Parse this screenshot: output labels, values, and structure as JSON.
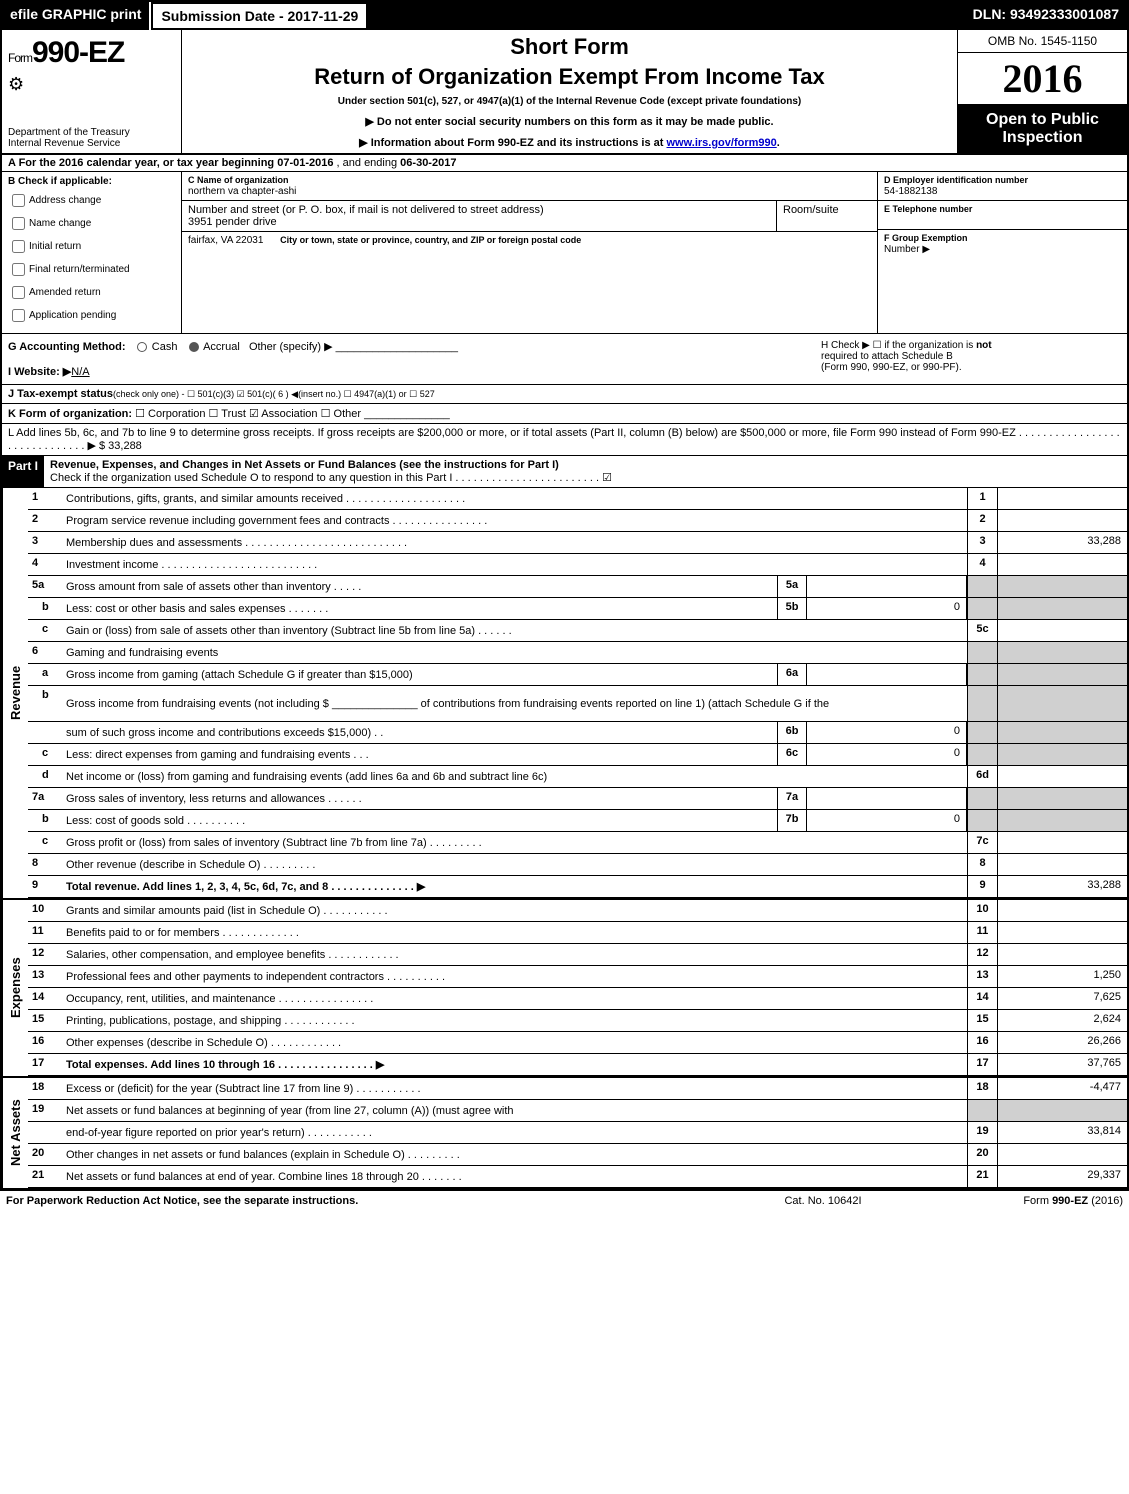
{
  "topbar": {
    "efile": "efile GRAPHIC print",
    "submission": "Submission Date - 2017-11-29",
    "dln": "DLN: 93492333001087"
  },
  "header": {
    "form_prefix": "Form",
    "form_no": "990-EZ",
    "dept1": "Department of the Treasury",
    "dept2": "Internal Revenue Service",
    "shortform": "Short Form",
    "title2": "Return of Organization Exempt From Income Tax",
    "subtitle": "Under section 501(c), 527, or 4947(a)(1) of the Internal Revenue Code (except private foundations)",
    "arrow1": "▶ Do not enter social security numbers on this form as it may be made public.",
    "arrow2_pre": "▶ Information about Form 990-EZ and its instructions is at ",
    "arrow2_link": "www.irs.gov/form990",
    "arrow2_post": ".",
    "omb": "OMB No. 1545-1150",
    "year": "2016",
    "open1": "Open to Public",
    "open2": "Inspection"
  },
  "row_a": {
    "label": "A  For the 2016 calendar year, or tax year beginning ",
    "begin": "07-01-2016",
    "mid": " , and ending ",
    "end": "06-30-2017"
  },
  "col_b": {
    "head": "B  Check if applicable:",
    "items": [
      "Address change",
      "Name change",
      "Initial return",
      "Final return/terminated",
      "Amended return",
      "Application pending"
    ]
  },
  "col_c": {
    "c_label": "C Name of organization",
    "c_value": "northern va chapter-ashi",
    "street_label": "Number and street (or P. O. box, if mail is not delivered to street address)",
    "street_value": "3951 pender drive",
    "room_label": "Room/suite",
    "city_label": "City or town, state or province, country, and ZIP or foreign postal code",
    "city_value": "fairfax, VA  22031"
  },
  "col_d": {
    "d_label": "D Employer identification number",
    "d_value": "54-1882138",
    "e_label": "E Telephone number",
    "e_value": "",
    "f_label": "F Group Exemption",
    "f_label2": "Number   ▶"
  },
  "row_g": {
    "g_label": "G Accounting Method:",
    "g_opts": [
      "Cash",
      "Accrual",
      "Other (specify) ▶"
    ],
    "h_text1": "H   Check ▶  ☐  if the organization is ",
    "h_bold": "not",
    "h_text2": " required to attach Schedule B",
    "h_text3": "(Form 990, 990-EZ, or 990-PF)."
  },
  "row_i": {
    "label": "I Website: ▶",
    "value": "N/A"
  },
  "row_j": {
    "label": "J Tax-exempt status",
    "rest": "(check only one) -  ☐ 501(c)(3)  ☑ 501(c)( 6 ) ◀(insert no.)  ☐ 4947(a)(1) or  ☐ 527"
  },
  "row_k": {
    "label": "K Form of organization:",
    "rest": "  ☐ Corporation   ☐ Trust   ☑ Association   ☐ Other"
  },
  "row_l": {
    "text": "L Add lines 5b, 6c, and 7b to line 9 to determine gross receipts. If gross receipts are $200,000 or more, or if total assets (Part II, column (B) below) are $500,000 or more, file Form 990 instead of Form 990-EZ  .  .  .  .  .  .  .  .  .  .  .  .  .  .  .  .  .  .  .  .  .  .  .  .  .  .  .  .  .  .  ▶ ",
    "amount": "$ 33,288"
  },
  "part1": {
    "part": "Part I",
    "title": "Revenue, Expenses, and Changes in Net Assets or Fund Balances (see the instructions for Part I)",
    "check": "Check if the organization used Schedule O to respond to any question in this Part I .  .  .  .  .  .  .  .  .  .  .  .  .  .  .  .  .  .  .  .  .  .  .  .  ☑"
  },
  "sections": {
    "revenue": "Revenue",
    "expenses": "Expenses",
    "netassets": "Net Assets"
  },
  "lines": [
    {
      "n": "1",
      "d": "Contributions, gifts, grants, and similar amounts received .  .  .  .  .  .  .  .  .  .  .  .  .  .  .  .  .  .  .  .",
      "rn": "1",
      "rv": ""
    },
    {
      "n": "2",
      "d": "Program service revenue including government fees and contracts .  .  .  .  .  .  .  .  .  .  .  .  .  .  .  .",
      "rn": "2",
      "rv": ""
    },
    {
      "n": "3",
      "d": "Membership dues and assessments  .  .  .  .  .  .  .  .  .  .  .  .  .  .  .  .  .  .  .  .  .  .  .  .  .  .  .",
      "rn": "3",
      "rv": "33,288"
    },
    {
      "n": "4",
      "d": "Investment income  .  .  .  .  .  .  .  .  .  .  .  .  .  .  .  .  .  .  .  .  .  .  .  .  .  .",
      "rn": "4",
      "rv": ""
    },
    {
      "n": "5a",
      "d": "Gross amount from sale of assets other than inventory  .  .  .  .  .",
      "mn": "5a",
      "mv": "",
      "shadeR": true
    },
    {
      "n": "b",
      "sub": true,
      "d": "Less: cost or other basis and sales expenses .  .  .  .  .  .  .",
      "mn": "5b",
      "mv": "0",
      "shadeR": true
    },
    {
      "n": "c",
      "sub": true,
      "d": "Gain or (loss) from sale of assets other than inventory (Subtract line 5b from line 5a)          .    .    .    .    .    .",
      "rn": "5c",
      "rv": ""
    },
    {
      "n": "6",
      "d": "Gaming and fundraising events",
      "shadeR": true,
      "noR": true
    },
    {
      "n": "a",
      "sub": true,
      "d": "Gross income from gaming (attach Schedule G if greater than $15,000)",
      "mn": "6a",
      "mv": "",
      "shadeR": true
    },
    {
      "n": "b",
      "sub": true,
      "d": "Gross income from fundraising events (not including $ ______________ of contributions from fundraising events reported on line 1) (attach Schedule G if the",
      "noMid": true,
      "shadeR": true,
      "tall": true
    },
    {
      "n": "",
      "d": "sum of such gross income and contributions exceeds $15,000)        .    .",
      "mn": "6b",
      "mv": "0",
      "shadeR": true
    },
    {
      "n": "c",
      "sub": true,
      "d": "Less: direct expenses from gaming and fundraising events          .    .    .",
      "mn": "6c",
      "mv": "0",
      "shadeR": true
    },
    {
      "n": "d",
      "sub": true,
      "d": "Net income or (loss) from gaming and fundraising events (add lines 6a and 6b and subtract line 6c)",
      "rn": "6d",
      "rv": ""
    },
    {
      "n": "7a",
      "d": "Gross sales of inventory, less returns and allowances            .    .    .    .    .    .",
      "mn": "7a",
      "mv": "",
      "shadeR": true
    },
    {
      "n": "b",
      "sub": true,
      "d": "Less: cost of goods sold                        .    .    .    .    .    .    .    .    .    .",
      "mn": "7b",
      "mv": "0",
      "shadeR": true
    },
    {
      "n": "c",
      "sub": true,
      "d": "Gross profit or (loss) from sales of inventory (Subtract line 7b from line 7a)          .    .    .    .    .    .    .    .    .",
      "rn": "7c",
      "rv": ""
    },
    {
      "n": "8",
      "d": "Other revenue (describe in Schedule O)                            .    .    .    .    .    .    .    .    .",
      "rn": "8",
      "rv": ""
    },
    {
      "n": "9",
      "d": "Total revenue. Add lines 1, 2, 3, 4, 5c, 6d, 7c, and 8        .    .    .    .    .    .    .    .    .    .    .    .    .    .   ▶",
      "rn": "9",
      "rv": "33,288",
      "bold": true
    }
  ],
  "exp_lines": [
    {
      "n": "10",
      "d": "Grants and similar amounts paid (list in Schedule O)                .    .    .    .    .    .    .    .    .    .    .",
      "rn": "10",
      "rv": ""
    },
    {
      "n": "11",
      "d": "Benefits paid to or for members                        .    .    .    .    .    .    .    .    .    .    .    .    .",
      "rn": "11",
      "rv": ""
    },
    {
      "n": "12",
      "d": "Salaries, other compensation, and employee benefits            .    .    .    .    .    .    .    .    .    .    .    .",
      "rn": "12",
      "rv": ""
    },
    {
      "n": "13",
      "d": "Professional fees and other payments to independent contractors        .    .    .    .    .    .    .    .    .    .",
      "rn": "13",
      "rv": "1,250"
    },
    {
      "n": "14",
      "d": "Occupancy, rent, utilities, and maintenance          .    .    .    .    .    .    .    .    .    .    .    .    .    .    .    .",
      "rn": "14",
      "rv": "7,625"
    },
    {
      "n": "15",
      "d": "Printing, publications, postage, and shipping                    .    .    .    .    .    .    .    .    .    .    .    .",
      "rn": "15",
      "rv": "2,624"
    },
    {
      "n": "16",
      "d": "Other expenses (describe in Schedule O)                        .    .    .    .    .    .    .    .    .    .    .    .",
      "rn": "16",
      "rv": "26,266"
    },
    {
      "n": "17",
      "d": "Total expenses. Add lines 10 through 16            .    .    .    .    .    .    .    .    .    .    .    .    .    .    .    .   ▶",
      "rn": "17",
      "rv": "37,765",
      "bold": true
    }
  ],
  "na_lines": [
    {
      "n": "18",
      "d": "Excess or (deficit) for the year (Subtract line 17 from line 9)            .    .    .    .    .    .    .    .    .    .    .",
      "rn": "18",
      "rv": "-4,477"
    },
    {
      "n": "19",
      "d": "Net assets or fund balances at beginning of year (from line 27, column (A)) (must agree with",
      "noR": true,
      "shadeR": true
    },
    {
      "n": "",
      "d": "end-of-year figure reported on prior year's return)                .    .    .    .    .    .    .    .    .    .    .",
      "rn": "19",
      "rv": "33,814"
    },
    {
      "n": "20",
      "d": "Other changes in net assets or fund balances (explain in Schedule O)        .    .    .    .    .    .    .    .    .",
      "rn": "20",
      "rv": ""
    },
    {
      "n": "21",
      "d": "Net assets or fund balances at end of year. Combine lines 18 through 20            .    .    .    .    .    .    .",
      "rn": "21",
      "rv": "29,337"
    }
  ],
  "footer": {
    "left": "For Paperwork Reduction Act Notice, see the separate instructions.",
    "center": "Cat. No. 10642I",
    "right_pre": "Form ",
    "right_bold": "990-EZ",
    "right_post": " (2016)"
  },
  "colors": {
    "black": "#000000",
    "white": "#ffffff",
    "shade": "#d0d0d0",
    "link": "#0000cc"
  }
}
